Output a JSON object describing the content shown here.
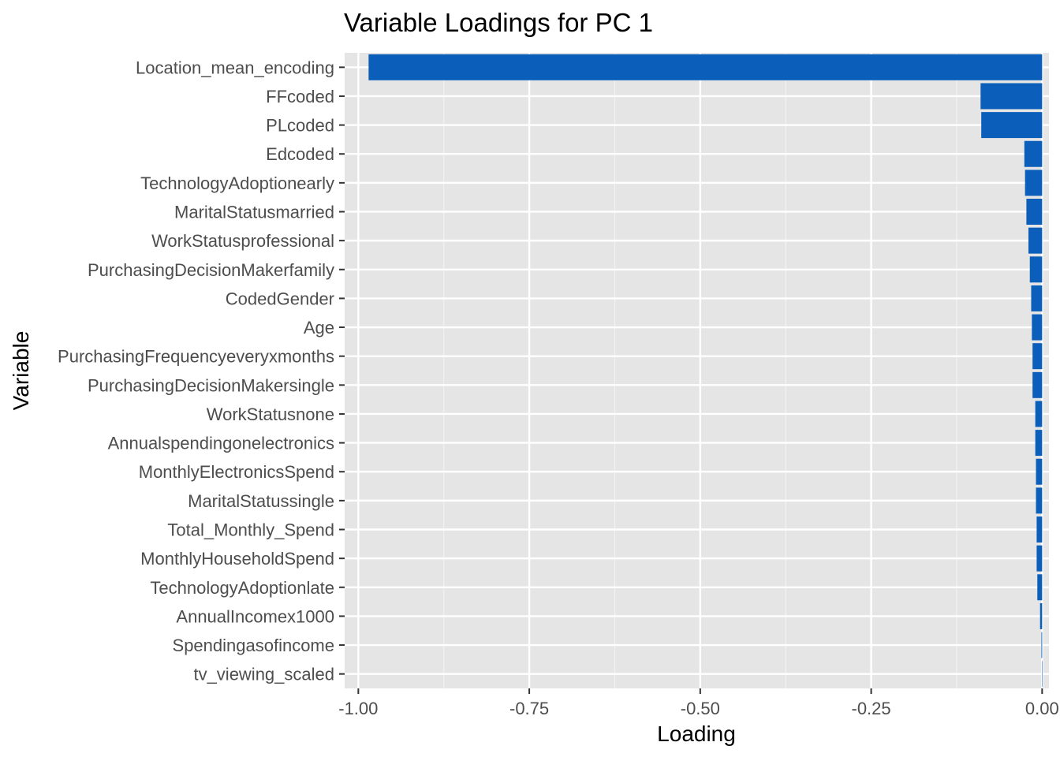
{
  "chart_data": {
    "type": "bar",
    "orientation": "horizontal",
    "title": "Variable Loadings for PC 1",
    "xlabel": "Loading",
    "ylabel": "Variable",
    "xlim": [
      -1.02,
      0.01
    ],
    "x_ticks": [
      -1.0,
      -0.75,
      -0.5,
      -0.25,
      0.0
    ],
    "x_tick_labels": [
      "-1.00",
      "-0.75",
      "-0.50",
      "-0.25",
      "0.00"
    ],
    "grid": true,
    "panel_color": "#e5e5e5",
    "bar_color": "#0b5fba",
    "categories": [
      "tv_viewing_scaled",
      "Spendingasofincome",
      "AnnualIncomex1000",
      "TechnologyAdoptionlate",
      "MonthlyHouseholdSpend",
      "Total_Monthly_Spend",
      "MaritalStatussingle",
      "MonthlyElectronicsSpend",
      "Annualspendingonelectronics",
      "WorkStatusnone",
      "PurchasingDecisionMakersingle",
      "PurchasingFrequencyeveryxmonths",
      "Age",
      "CodedGender",
      "PurchasingDecisionMakerfamily",
      "WorkStatusprofessional",
      "MaritalStatusmarried",
      "TechnologyAdoptionearly",
      "Edcoded",
      "PLcoded",
      "FFcoded",
      "Location_mean_encoding"
    ],
    "values": [
      0.0,
      -0.001,
      -0.003,
      -0.007,
      -0.008,
      -0.008,
      -0.009,
      -0.009,
      -0.01,
      -0.01,
      -0.014,
      -0.014,
      -0.015,
      -0.016,
      -0.018,
      -0.02,
      -0.023,
      -0.025,
      -0.026,
      -0.089,
      -0.09,
      -0.985
    ]
  }
}
